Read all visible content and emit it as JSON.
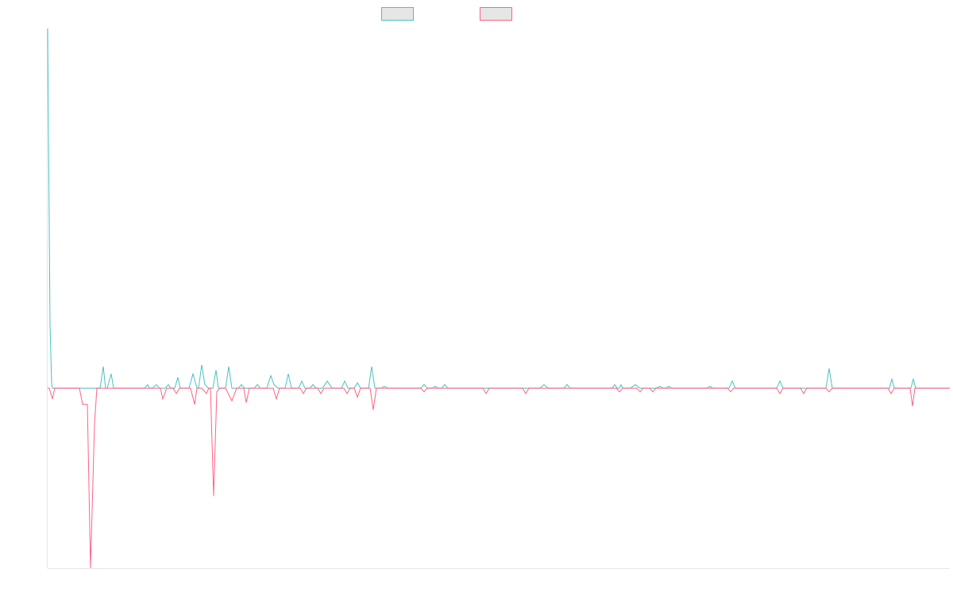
{
  "chart_data": {
    "type": "line",
    "title": "",
    "xlabel": "",
    "ylabel": "",
    "grid": false,
    "legend_position": "top-center",
    "ylim": [
      -1.0,
      2.0
    ],
    "series": [
      {
        "color": "#4bc0c0",
        "fill": "#e6e6e6",
        "points": [
          [
            0,
            2.0
          ],
          [
            3,
            0.35
          ],
          [
            5,
            0.03
          ],
          [
            6,
            0.0
          ],
          [
            66,
            0.0
          ],
          [
            70,
            0.12
          ],
          [
            73,
            0.0
          ],
          [
            75,
            0.0
          ],
          [
            80,
            0.08
          ],
          [
            83,
            0.0
          ],
          [
            122,
            0.0
          ],
          [
            126,
            0.02
          ],
          [
            128,
            0.0
          ],
          [
            132,
            0.0
          ],
          [
            137,
            0.02
          ],
          [
            141,
            0.0
          ],
          [
            148,
            0.0
          ],
          [
            152,
            0.02
          ],
          [
            155,
            0.0
          ],
          [
            160,
            0.0
          ],
          [
            164,
            0.06
          ],
          [
            167,
            0.0
          ],
          [
            178,
            0.0
          ],
          [
            183,
            0.08
          ],
          [
            188,
            0.0
          ],
          [
            190,
            0.0
          ],
          [
            194,
            0.13
          ],
          [
            198,
            0.02
          ],
          [
            202,
            0.0
          ],
          [
            208,
            0.0
          ],
          [
            212,
            0.1
          ],
          [
            215,
            0.0
          ],
          [
            224,
            0.0
          ],
          [
            228,
            0.12
          ],
          [
            232,
            0.0
          ],
          [
            240,
            0.0
          ],
          [
            244,
            0.02
          ],
          [
            248,
            0.0
          ],
          [
            260,
            0.0
          ],
          [
            264,
            0.02
          ],
          [
            268,
            0.0
          ],
          [
            276,
            0.0
          ],
          [
            281,
            0.07
          ],
          [
            285,
            0.02
          ],
          [
            290,
            0.0
          ],
          [
            299,
            0.0
          ],
          [
            303,
            0.08
          ],
          [
            307,
            0.0
          ],
          [
            316,
            0.0
          ],
          [
            320,
            0.04
          ],
          [
            324,
            0.0
          ],
          [
            330,
            0.0
          ],
          [
            334,
            0.02
          ],
          [
            338,
            0.0
          ],
          [
            346,
            0.0
          ],
          [
            352,
            0.04
          ],
          [
            358,
            0.0
          ],
          [
            370,
            0.0
          ],
          [
            374,
            0.04
          ],
          [
            378,
            0.0
          ],
          [
            386,
            0.0
          ],
          [
            390,
            0.03
          ],
          [
            394,
            0.0
          ],
          [
            404,
            0.0
          ],
          [
            408,
            0.12
          ],
          [
            412,
            0.0
          ],
          [
            420,
            0.0
          ],
          [
            424,
            0.01
          ],
          [
            428,
            0.0
          ],
          [
            470,
            0.0
          ],
          [
            474,
            0.02
          ],
          [
            478,
            0.0
          ],
          [
            484,
            0.0
          ],
          [
            488,
            0.01
          ],
          [
            492,
            0.0
          ],
          [
            496,
            0.0
          ],
          [
            500,
            0.02
          ],
          [
            504,
            0.0
          ],
          [
            620,
            0.0
          ],
          [
            625,
            0.02
          ],
          [
            630,
            0.0
          ],
          [
            650,
            0.0
          ],
          [
            654,
            0.02
          ],
          [
            658,
            0.0
          ],
          [
            711,
            0.0
          ],
          [
            714,
            0.02
          ],
          [
            717,
            0.0
          ],
          [
            720,
            0.0
          ],
          [
            722,
            0.02
          ],
          [
            724,
            0.0
          ],
          [
            734,
            0.0
          ],
          [
            740,
            0.02
          ],
          [
            746,
            0.0
          ],
          [
            766,
            0.0
          ],
          [
            771,
            0.01
          ],
          [
            775,
            0.0
          ],
          [
            778,
            0.0
          ],
          [
            782,
            0.01
          ],
          [
            786,
            0.0
          ],
          [
            830,
            0.0
          ],
          [
            834,
            0.01
          ],
          [
            838,
            0.0
          ],
          [
            858,
            0.0
          ],
          [
            862,
            0.04
          ],
          [
            866,
            0.0
          ],
          [
            918,
            0.0
          ],
          [
            922,
            0.04
          ],
          [
            926,
            0.0
          ],
          [
            980,
            0.0
          ],
          [
            984,
            0.11
          ],
          [
            988,
            0.0
          ],
          [
            1060,
            0.0
          ],
          [
            1063,
            0.05
          ],
          [
            1066,
            0.0
          ],
          [
            1087,
            0.0
          ],
          [
            1090,
            0.05
          ],
          [
            1093,
            0.0
          ],
          [
            1136,
            0.0
          ]
        ]
      },
      {
        "color": "#ff6384",
        "fill": "#e6e6e6",
        "points": [
          [
            0,
            0.0
          ],
          [
            2,
            0.0
          ],
          [
            6,
            -0.06
          ],
          [
            9,
            0.0
          ],
          [
            40,
            0.0
          ],
          [
            44,
            -0.09
          ],
          [
            50,
            -0.09
          ],
          [
            54,
            -1.0
          ],
          [
            59,
            -0.2
          ],
          [
            62,
            0.0
          ],
          [
            142,
            0.0
          ],
          [
            145,
            -0.06
          ],
          [
            150,
            0.0
          ],
          [
            158,
            0.0
          ],
          [
            162,
            -0.03
          ],
          [
            166,
            0.0
          ],
          [
            180,
            0.0
          ],
          [
            185,
            -0.09
          ],
          [
            188,
            0.0
          ],
          [
            194,
            0.0
          ],
          [
            200,
            -0.03
          ],
          [
            203,
            0.0
          ],
          [
            205,
            0.0
          ],
          [
            209,
            -0.6
          ],
          [
            213,
            -0.02
          ],
          [
            217,
            0.0
          ],
          [
            224,
            0.0
          ],
          [
            232,
            -0.07
          ],
          [
            238,
            0.0
          ],
          [
            247,
            0.0
          ],
          [
            250,
            -0.08
          ],
          [
            254,
            0.0
          ],
          [
            284,
            0.0
          ],
          [
            288,
            -0.06
          ],
          [
            292,
            0.0
          ],
          [
            318,
            0.0
          ],
          [
            322,
            -0.03
          ],
          [
            326,
            0.0
          ],
          [
            340,
            0.0
          ],
          [
            344,
            -0.03
          ],
          [
            348,
            0.0
          ],
          [
            373,
            0.0
          ],
          [
            377,
            -0.03
          ],
          [
            381,
            0.0
          ],
          [
            386,
            0.0
          ],
          [
            390,
            -0.05
          ],
          [
            394,
            0.0
          ],
          [
            406,
            0.0
          ],
          [
            410,
            -0.12
          ],
          [
            414,
            0.0
          ],
          [
            470,
            0.0
          ],
          [
            474,
            -0.02
          ],
          [
            478,
            0.0
          ],
          [
            548,
            0.0
          ],
          [
            552,
            -0.03
          ],
          [
            556,
            0.0
          ],
          [
            598,
            0.0
          ],
          [
            602,
            -0.03
          ],
          [
            606,
            0.0
          ],
          [
            716,
            0.0
          ],
          [
            720,
            -0.02
          ],
          [
            724,
            0.0
          ],
          [
            742,
            0.0
          ],
          [
            746,
            -0.02
          ],
          [
            750,
            0.0
          ],
          [
            758,
            0.0
          ],
          [
            762,
            -0.02
          ],
          [
            766,
            0.0
          ],
          [
            856,
            0.0
          ],
          [
            860,
            -0.02
          ],
          [
            864,
            0.0
          ],
          [
            918,
            0.0
          ],
          [
            922,
            -0.03
          ],
          [
            926,
            0.0
          ],
          [
            948,
            0.0
          ],
          [
            952,
            -0.03
          ],
          [
            956,
            0.0
          ],
          [
            980,
            0.0
          ],
          [
            984,
            -0.02
          ],
          [
            988,
            0.0
          ],
          [
            1058,
            0.0
          ],
          [
            1062,
            -0.03
          ],
          [
            1066,
            0.0
          ],
          [
            1086,
            0.0
          ],
          [
            1089,
            -0.1
          ],
          [
            1092,
            0.0
          ],
          [
            1136,
            0.0
          ]
        ]
      }
    ]
  }
}
